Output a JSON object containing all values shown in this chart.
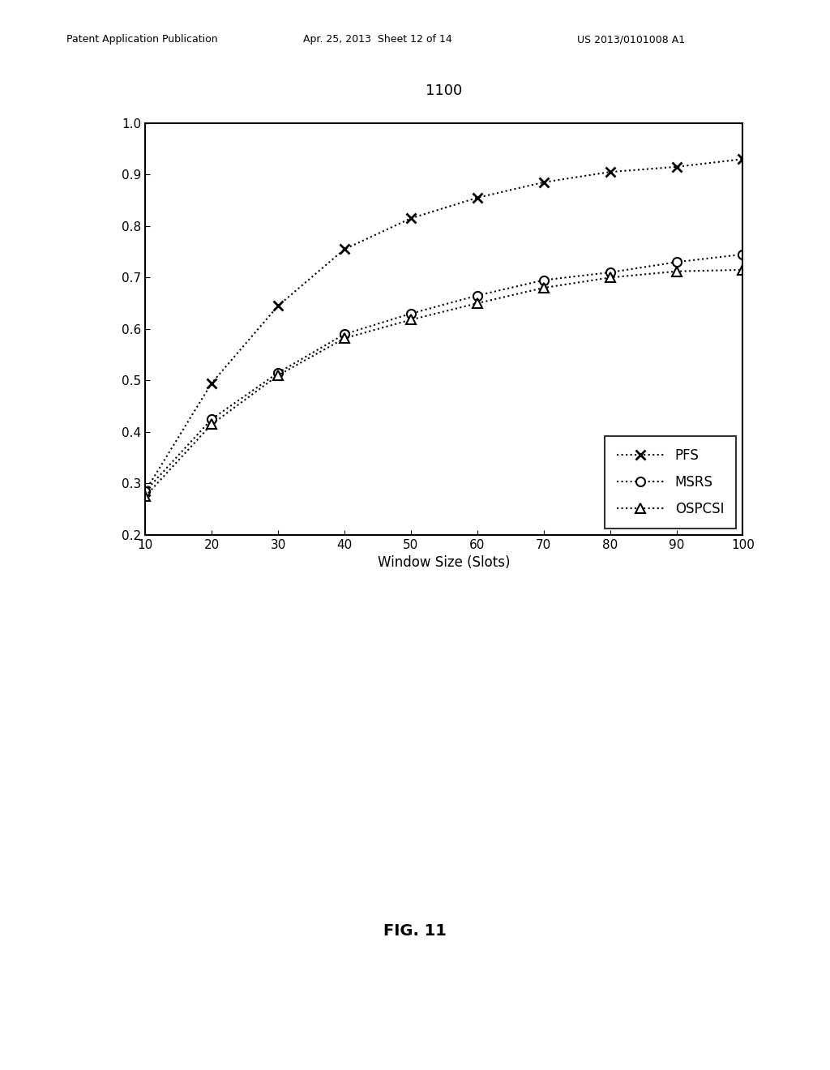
{
  "title": "1100",
  "xlabel": "Window Size (Slots)",
  "fig_caption": "FIG. 11",
  "xlim": [
    10,
    100
  ],
  "ylim": [
    0.2,
    1.0
  ],
  "xticks": [
    10,
    20,
    30,
    40,
    50,
    60,
    70,
    80,
    90,
    100
  ],
  "yticks": [
    0.2,
    0.3,
    0.4,
    0.5,
    0.6,
    0.7,
    0.8,
    0.9,
    1
  ],
  "PFS_x": [
    10,
    20,
    30,
    40,
    50,
    60,
    70,
    80,
    90,
    100
  ],
  "PFS_y": [
    0.285,
    0.495,
    0.645,
    0.755,
    0.815,
    0.855,
    0.885,
    0.905,
    0.915,
    0.93
  ],
  "MSRS_x": [
    10,
    20,
    30,
    40,
    50,
    60,
    70,
    80,
    90,
    100
  ],
  "MSRS_y": [
    0.285,
    0.425,
    0.515,
    0.59,
    0.63,
    0.665,
    0.695,
    0.71,
    0.73,
    0.745
  ],
  "OSPCSI_x": [
    10,
    20,
    30,
    40,
    50,
    60,
    70,
    80,
    90,
    100
  ],
  "OSPCSI_y": [
    0.275,
    0.415,
    0.51,
    0.582,
    0.618,
    0.65,
    0.68,
    0.7,
    0.712,
    0.715
  ],
  "header_left": "Patent Application Publication",
  "header_mid": "Apr. 25, 2013  Sheet 12 of 14",
  "header_right": "US 2013/0101008 A1",
  "background_color": "#ffffff",
  "line_color": "#000000",
  "title_fontsize": 13,
  "axis_label_fontsize": 12,
  "tick_fontsize": 11,
  "legend_fontsize": 12,
  "caption_fontsize": 14,
  "header_fontsize": 9
}
